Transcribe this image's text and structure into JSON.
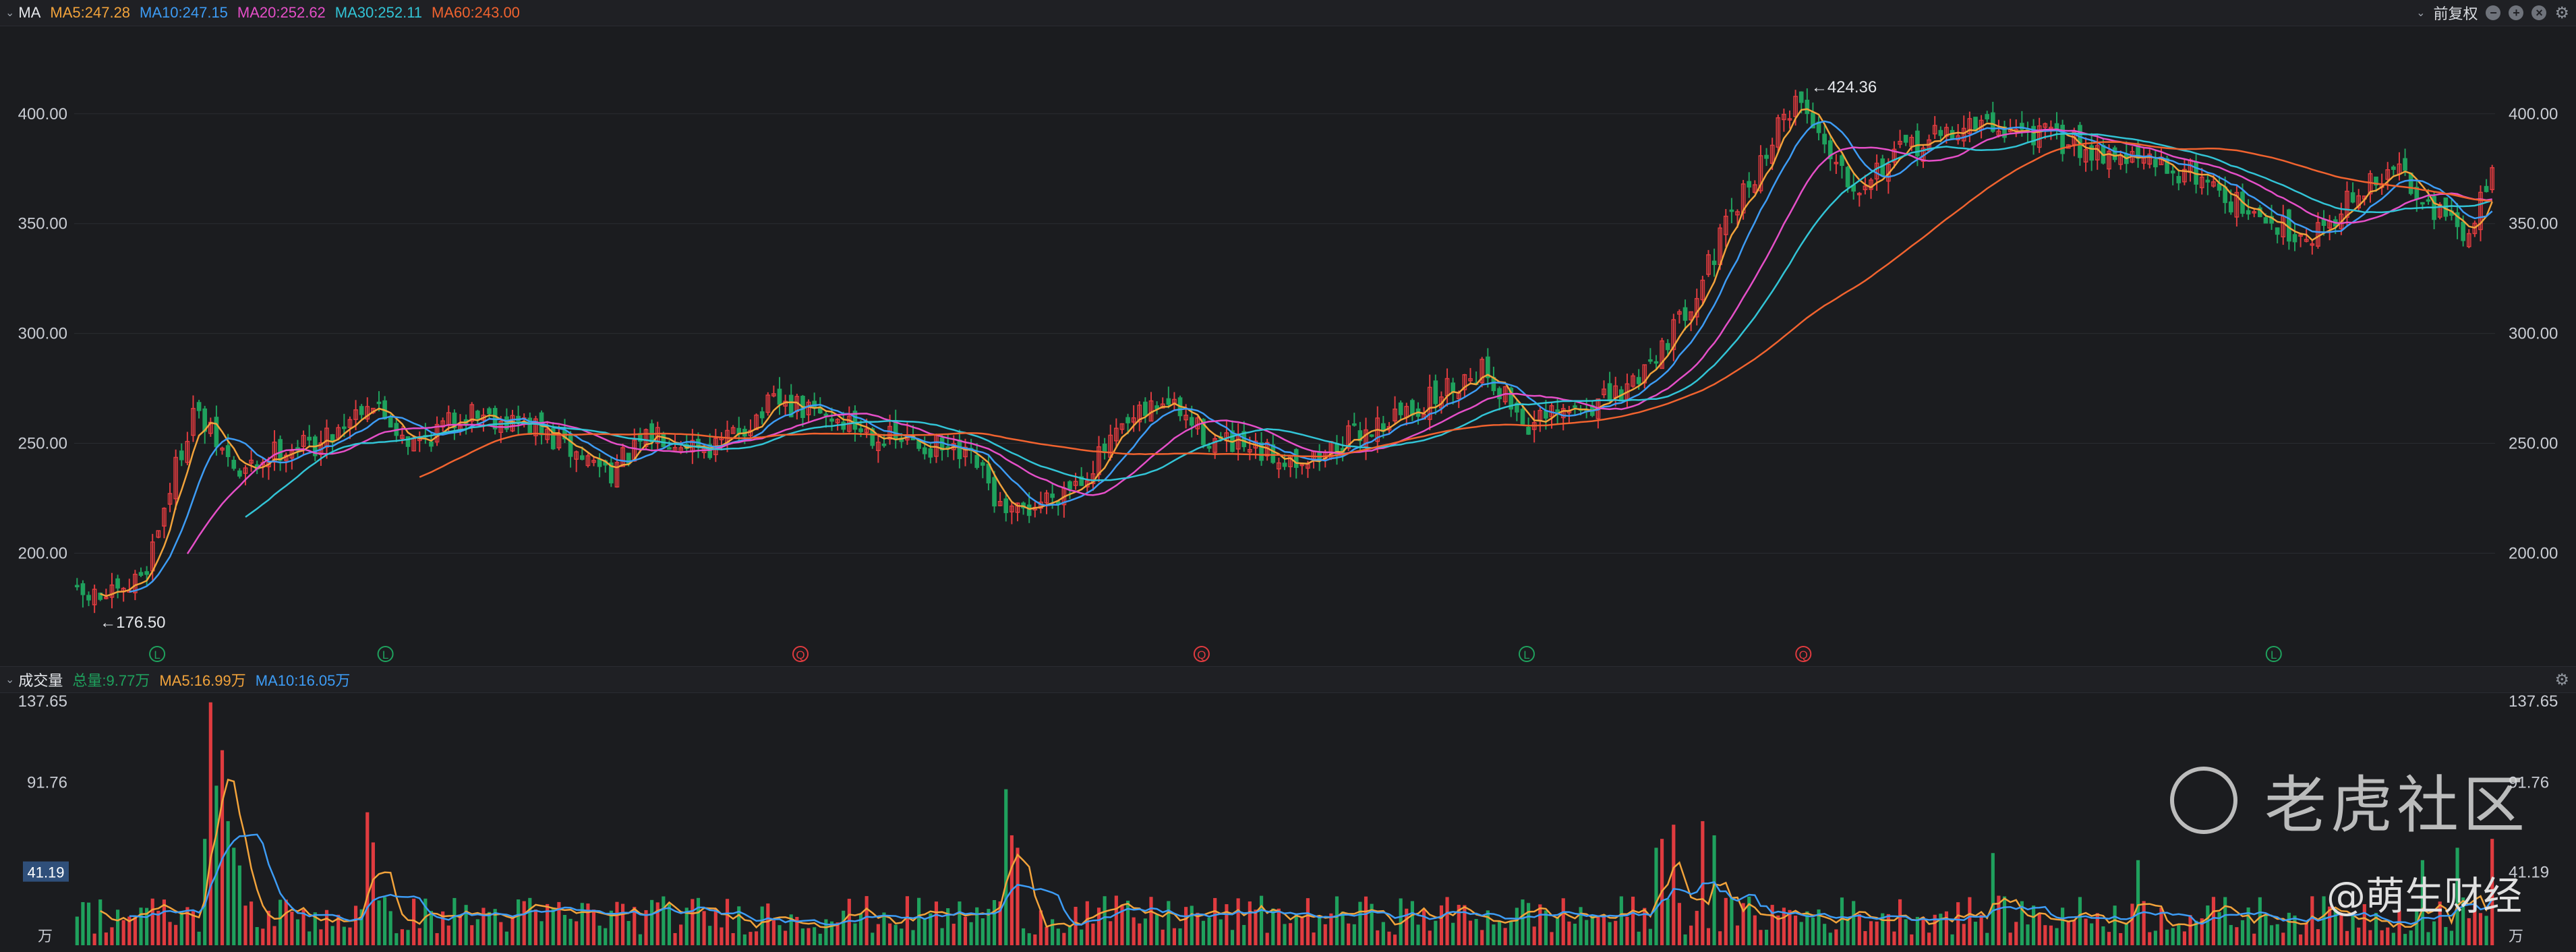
{
  "header": {
    "indicator": "MA",
    "ma5": "MA5:247.28",
    "ma10": "MA10:247.15",
    "ma20": "MA20:252.62",
    "ma30": "MA30:252.11",
    "ma60": "MA60:243.00",
    "adjust": "前复权",
    "tools": [
      "minus-icon",
      "plus-icon",
      "close-icon",
      "gear-icon"
    ]
  },
  "volume_header": {
    "title": "成交量",
    "total": "总量:9.77万",
    "ma5": "MA5:16.99万",
    "ma10": "MA10:16.05万"
  },
  "watermark": {
    "brand": "老虎社区",
    "author": "@萌生财经"
  },
  "colors": {
    "up": "#e03b3f",
    "down": "#1fa15d",
    "ma5": "#f2a33b",
    "ma10": "#3d9cf5",
    "ma20": "#e54fc8",
    "ma30": "#32c4d6",
    "ma60": "#f1632f",
    "bg": "#1b1c1f",
    "grid": "#2a2c31"
  },
  "chart_data": [
    {
      "type": "candlestick",
      "name": "price",
      "y_ticks": [
        "400.00",
        "350.00",
        "300.00",
        "250.00",
        "200.00"
      ],
      "ylim": [
        167,
        434
      ],
      "annotations": {
        "high": "←424.36",
        "low": "←176.50"
      },
      "event_markers": [
        "L",
        "L",
        "Q",
        "Q",
        "L",
        "Q",
        "L"
      ],
      "anchors": [
        [
          0,
          180
        ],
        [
          8,
          180
        ],
        [
          12,
          195
        ],
        [
          16,
          230
        ],
        [
          20,
          265
        ],
        [
          28,
          235
        ],
        [
          35,
          248
        ],
        [
          42,
          250
        ],
        [
          50,
          270
        ],
        [
          58,
          250
        ],
        [
          68,
          265
        ],
        [
          78,
          258
        ],
        [
          86,
          245
        ],
        [
          92,
          238
        ],
        [
          100,
          255
        ],
        [
          110,
          248
        ],
        [
          120,
          268
        ],
        [
          130,
          262
        ],
        [
          140,
          252
        ],
        [
          148,
          248
        ],
        [
          155,
          240
        ],
        [
          160,
          215
        ],
        [
          165,
          222
        ],
        [
          173,
          235
        ],
        [
          180,
          255
        ],
        [
          187,
          270
        ],
        [
          195,
          252
        ],
        [
          203,
          245
        ],
        [
          213,
          243
        ],
        [
          221,
          255
        ],
        [
          232,
          268
        ],
        [
          242,
          285
        ],
        [
          250,
          258
        ],
        [
          258,
          265
        ],
        [
          266,
          272
        ],
        [
          276,
          305
        ],
        [
          286,
          358
        ],
        [
          296,
          408
        ],
        [
          306,
          368
        ],
        [
          316,
          385
        ],
        [
          326,
          395
        ],
        [
          336,
          392
        ],
        [
          346,
          385
        ],
        [
          356,
          378
        ],
        [
          366,
          372
        ],
        [
          375,
          352
        ],
        [
          385,
          345
        ],
        [
          392,
          362
        ],
        [
          400,
          375
        ],
        [
          408,
          352
        ],
        [
          412,
          342
        ],
        [
          416,
          380
        ]
      ],
      "series": [
        {
          "name": "MA5",
          "period": 5
        },
        {
          "name": "MA10",
          "period": 10
        },
        {
          "name": "MA20",
          "period": 20
        },
        {
          "name": "MA30",
          "period": 30
        },
        {
          "name": "MA60",
          "period": 60
        }
      ],
      "n": 417
    },
    {
      "type": "bar",
      "name": "volume",
      "y_ticks": [
        "137.65",
        "91.76",
        "41.19"
      ],
      "unit": "万",
      "ylim": [
        0,
        137.65
      ],
      "current_label": "41.19",
      "spikes": [
        [
          22,
          60
        ],
        [
          23,
          137
        ],
        [
          24,
          90
        ],
        [
          25,
          110
        ],
        [
          26,
          70
        ],
        [
          27,
          55
        ],
        [
          28,
          45
        ],
        [
          50,
          75
        ],
        [
          51,
          58
        ],
        [
          160,
          88
        ],
        [
          161,
          62
        ],
        [
          162,
          55
        ],
        [
          272,
          55
        ],
        [
          273,
          60
        ],
        [
          275,
          68
        ],
        [
          280,
          70
        ],
        [
          282,
          62
        ],
        [
          330,
          52
        ],
        [
          355,
          48
        ],
        [
          404,
          48
        ],
        [
          410,
          55
        ],
        [
          416,
          60
        ]
      ]
    }
  ]
}
